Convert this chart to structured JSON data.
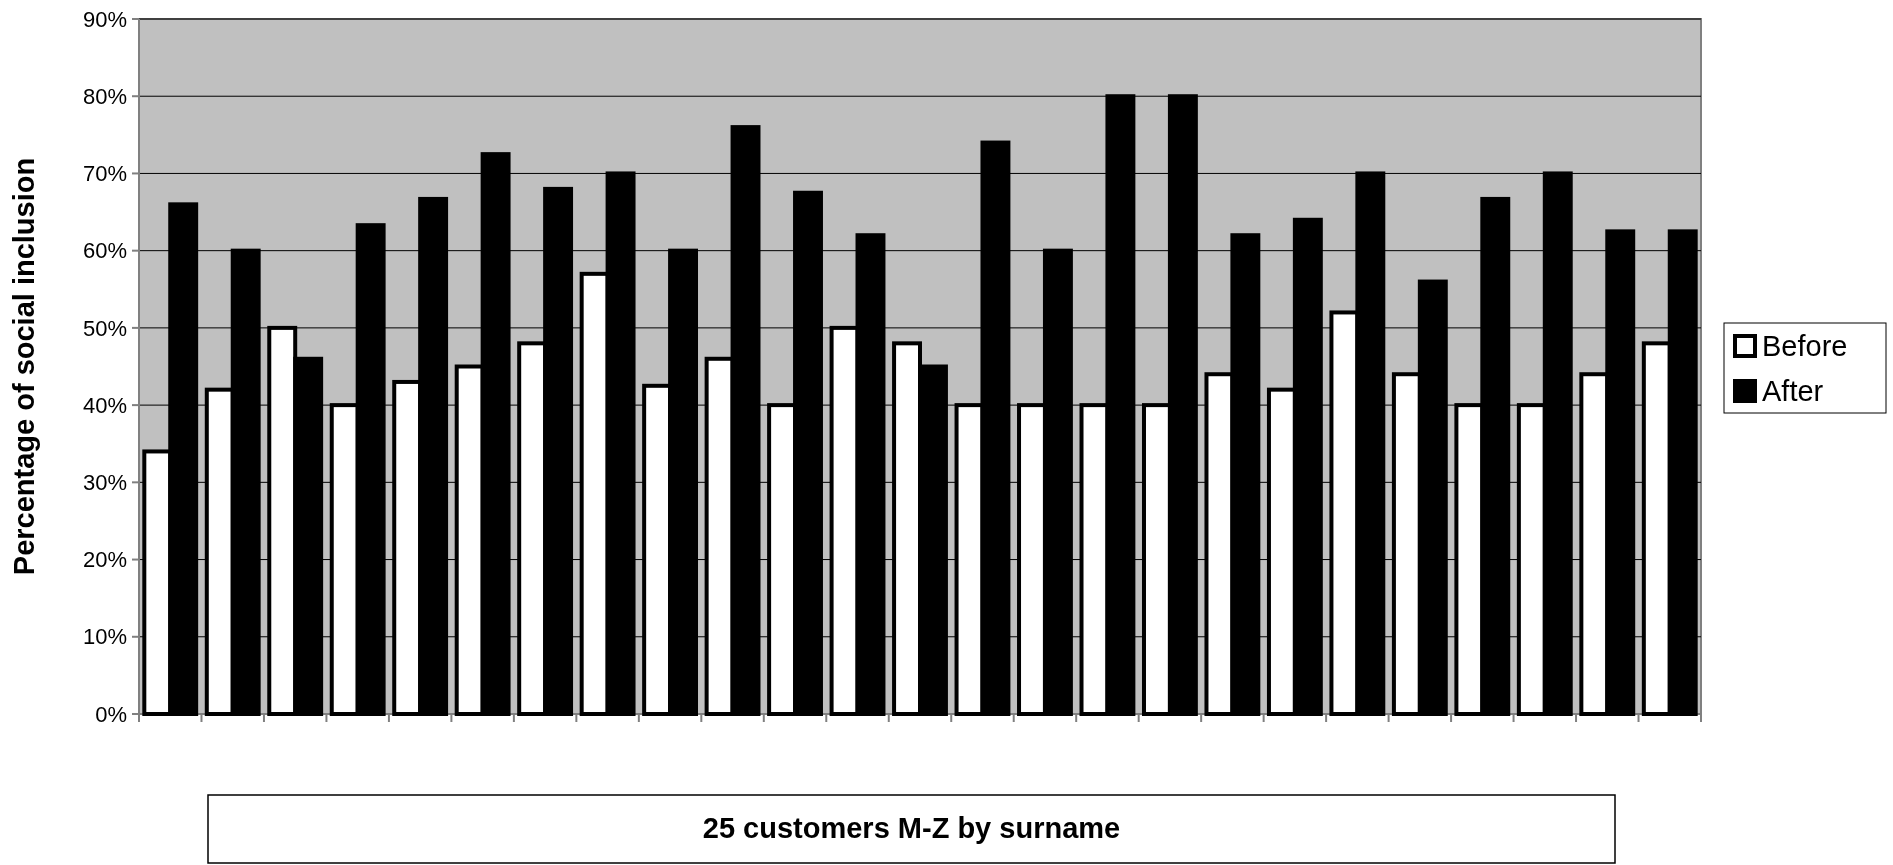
{
  "chart_data": {
    "type": "bar",
    "categories": [
      null,
      null,
      null,
      null,
      null,
      null,
      null,
      null,
      null,
      null,
      null,
      null,
      null,
      null,
      null,
      null,
      null,
      null,
      null,
      null,
      null,
      null,
      null,
      null,
      null
    ],
    "series": [
      {
        "name": "Before",
        "color": "#ffffff",
        "values": [
          34,
          42,
          50,
          40,
          43,
          45,
          48,
          57,
          42.5,
          46,
          40,
          50,
          48,
          40,
          40,
          40,
          40,
          44,
          42,
          52,
          44,
          40,
          40,
          44,
          48
        ]
      },
      {
        "name": "After",
        "color": "#000000",
        "values": [
          66,
          60,
          46,
          63.3,
          66.7,
          72.5,
          68,
          70,
          60,
          76,
          67.5,
          62,
          45,
          74,
          60,
          80,
          80,
          62,
          64,
          70,
          56,
          66.7,
          70,
          62.5,
          62.5
        ]
      }
    ],
    "xlabel": "25 customers M-Z by surname",
    "ylabel": "Percentage of social inclusion",
    "ylim": [
      0,
      90
    ],
    "yticks": [
      {
        "value": 0,
        "label": "0%"
      },
      {
        "value": 10,
        "label": "10%"
      },
      {
        "value": 20,
        "label": "20%"
      },
      {
        "value": 30,
        "label": "30%"
      },
      {
        "value": 40,
        "label": "40%"
      },
      {
        "value": 50,
        "label": "50%"
      },
      {
        "value": 60,
        "label": "60%"
      },
      {
        "value": 70,
        "label": "70%"
      },
      {
        "value": 80,
        "label": "80%"
      },
      {
        "value": 90,
        "label": "90%"
      }
    ],
    "grid": "y",
    "legend": "right"
  }
}
